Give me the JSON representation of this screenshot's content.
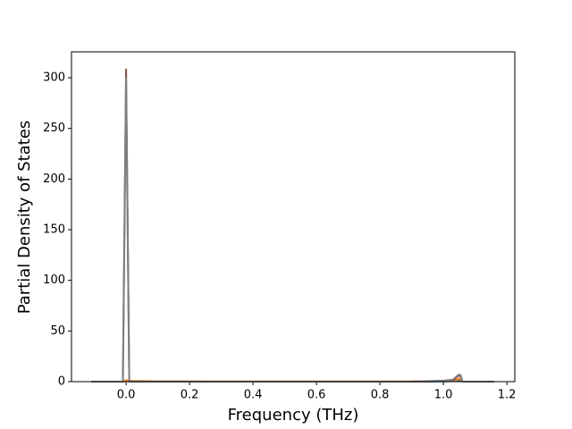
{
  "chart_data": {
    "type": "line",
    "xlabel": "Frequency (THz)",
    "ylabel": "Partial Density of States",
    "x": [
      -0.11,
      -0.01,
      -0.005,
      0,
      0.005,
      0.01,
      0.1,
      0.9,
      1.0,
      1.03,
      1.045,
      1.05,
      1.055,
      1.06,
      1.16
    ],
    "series": [
      {
        "color": "#1f77b4",
        "values": [
          0,
          0,
          0.5,
          1,
          0.5,
          0,
          0,
          0,
          0.2,
          0.4,
          1,
          1.5,
          1,
          0,
          0
        ]
      },
      {
        "color": "#ff7f0e",
        "values": [
          0,
          0,
          0.5,
          1.5,
          1,
          0.8,
          0.3,
          0.2,
          0.5,
          1,
          2,
          3,
          2,
          0,
          0
        ]
      },
      {
        "color": "#8c564b",
        "values": [
          0,
          0,
          155,
          309,
          155,
          0,
          0,
          0,
          0.5,
          1,
          5,
          6,
          5,
          0,
          0
        ]
      },
      {
        "color": "#7f7f7f",
        "values": [
          0,
          0,
          150,
          300,
          150,
          0,
          0,
          0,
          1,
          2,
          6,
          7,
          6,
          0,
          0
        ]
      }
    ],
    "xlim": [
      -0.172,
      1.225
    ],
    "xticks": [
      {
        "value": 0,
        "label": "0.0"
      },
      0.2,
      0.4,
      0.6,
      0.8,
      {
        "value": 1,
        "label": "1.0"
      },
      1.2
    ],
    "ylim": [
      0,
      325.6
    ],
    "yticks": [
      0,
      50,
      100,
      150,
      200,
      250,
      300
    ]
  }
}
